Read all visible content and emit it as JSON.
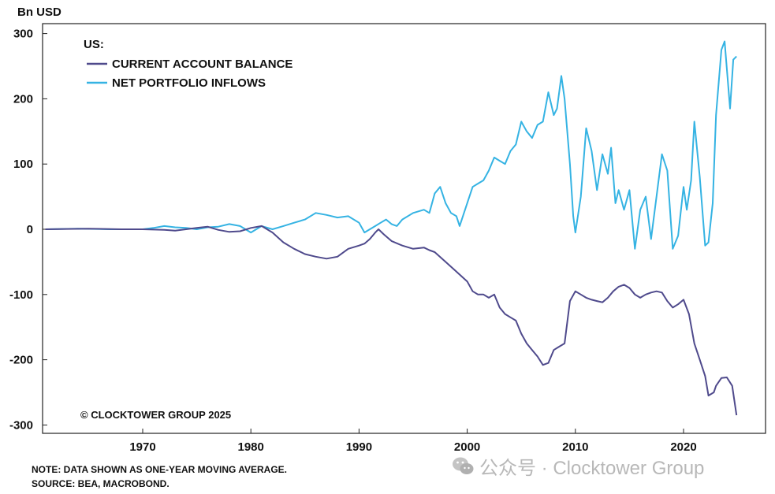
{
  "unit_label": "Bn USD",
  "chart_data": {
    "type": "line",
    "xlim": [
      1961,
      1962,
      2026
    ],
    "ylim": [
      -310,
      310
    ],
    "yticks": [
      300,
      200,
      100,
      0,
      -100,
      -200,
      -300
    ],
    "ytick_labels": [
      "300",
      "200",
      "100",
      "0",
      "-100",
      "-200",
      "-300"
    ],
    "xticks": [
      1970,
      1980,
      1990,
      2000,
      2010,
      2020
    ],
    "xtick_labels": [
      "1970",
      "1980",
      "1990",
      "2000",
      "2010",
      "2020"
    ],
    "grid": false,
    "legend": {
      "title": "US:",
      "placement": "top-left"
    },
    "series": [
      {
        "name": "CURRENT ACCOUNT BALANCE",
        "color": "#4f4a8c",
        "points": [
          [
            1961,
            0
          ],
          [
            1965,
            1
          ],
          [
            1968,
            0
          ],
          [
            1970,
            0
          ],
          [
            1972,
            -1
          ],
          [
            1973,
            -2
          ],
          [
            1975,
            2
          ],
          [
            1976,
            4
          ],
          [
            1977,
            -1
          ],
          [
            1978,
            -4
          ],
          [
            1979,
            -3
          ],
          [
            1980,
            2
          ],
          [
            1981,
            5
          ],
          [
            1982,
            -5
          ],
          [
            1983,
            -20
          ],
          [
            1984,
            -30
          ],
          [
            1985,
            -38
          ],
          [
            1986,
            -42
          ],
          [
            1987,
            -45
          ],
          [
            1988,
            -42
          ],
          [
            1989,
            -30
          ],
          [
            1990,
            -25
          ],
          [
            1990.5,
            -22
          ],
          [
            1991,
            -15
          ],
          [
            1991.5,
            -5
          ],
          [
            1991.8,
            0
          ],
          [
            1992.3,
            -8
          ],
          [
            1993,
            -18
          ],
          [
            1994,
            -25
          ],
          [
            1995,
            -30
          ],
          [
            1996,
            -28
          ],
          [
            1996.5,
            -32
          ],
          [
            1997,
            -35
          ],
          [
            1998,
            -50
          ],
          [
            1999,
            -65
          ],
          [
            2000,
            -80
          ],
          [
            2000.5,
            -95
          ],
          [
            2001,
            -100
          ],
          [
            2001.5,
            -100
          ],
          [
            2002,
            -105
          ],
          [
            2002.5,
            -100
          ],
          [
            2003,
            -120
          ],
          [
            2003.5,
            -130
          ],
          [
            2004,
            -135
          ],
          [
            2004.5,
            -140
          ],
          [
            2005,
            -160
          ],
          [
            2005.5,
            -175
          ],
          [
            2006,
            -185
          ],
          [
            2006.5,
            -195
          ],
          [
            2007,
            -208
          ],
          [
            2007.5,
            -205
          ],
          [
            2008,
            -185
          ],
          [
            2008.5,
            -180
          ],
          [
            2009,
            -175
          ],
          [
            2009.5,
            -110
          ],
          [
            2010,
            -95
          ],
          [
            2010.5,
            -100
          ],
          [
            2011,
            -105
          ],
          [
            2011.5,
            -108
          ],
          [
            2012,
            -110
          ],
          [
            2012.5,
            -112
          ],
          [
            2013,
            -105
          ],
          [
            2013.5,
            -95
          ],
          [
            2014,
            -88
          ],
          [
            2014.5,
            -85
          ],
          [
            2015,
            -90
          ],
          [
            2015.5,
            -100
          ],
          [
            2016,
            -105
          ],
          [
            2016.5,
            -100
          ],
          [
            2017,
            -97
          ],
          [
            2017.5,
            -95
          ],
          [
            2018,
            -97
          ],
          [
            2018.5,
            -110
          ],
          [
            2019,
            -120
          ],
          [
            2019.5,
            -115
          ],
          [
            2020,
            -108
          ],
          [
            2020.5,
            -130
          ],
          [
            2021,
            -175
          ],
          [
            2021.5,
            -200
          ],
          [
            2022,
            -225
          ],
          [
            2022.3,
            -255
          ],
          [
            2022.8,
            -250
          ],
          [
            2023,
            -240
          ],
          [
            2023.5,
            -228
          ],
          [
            2024,
            -227
          ],
          [
            2024.5,
            -240
          ],
          [
            2024.9,
            -285
          ]
        ]
      },
      {
        "name": "NET PORTFOLIO INFLOWS",
        "color": "#35b3e3",
        "points": [
          [
            1961,
            0
          ],
          [
            1964,
            1
          ],
          [
            1967,
            0
          ],
          [
            1970,
            0
          ],
          [
            1971,
            2
          ],
          [
            1972,
            5
          ],
          [
            1973,
            3
          ],
          [
            1974,
            2
          ],
          [
            1975,
            0
          ],
          [
            1976,
            3
          ],
          [
            1977,
            4
          ],
          [
            1978,
            8
          ],
          [
            1979,
            5
          ],
          [
            1980,
            -5
          ],
          [
            1981,
            5
          ],
          [
            1982,
            0
          ],
          [
            1983,
            5
          ],
          [
            1984,
            10
          ],
          [
            1985,
            15
          ],
          [
            1986,
            25
          ],
          [
            1987,
            22
          ],
          [
            1988,
            18
          ],
          [
            1989,
            20
          ],
          [
            1990,
            10
          ],
          [
            1990.5,
            -5
          ],
          [
            1991,
            0
          ],
          [
            1991.5,
            5
          ],
          [
            1992,
            10
          ],
          [
            1992.5,
            15
          ],
          [
            1993,
            8
          ],
          [
            1993.5,
            5
          ],
          [
            1994,
            15
          ],
          [
            1995,
            25
          ],
          [
            1996,
            30
          ],
          [
            1996.5,
            25
          ],
          [
            1997,
            55
          ],
          [
            1997.5,
            65
          ],
          [
            1998,
            40
          ],
          [
            1998.5,
            25
          ],
          [
            1999,
            20
          ],
          [
            1999.3,
            5
          ],
          [
            2000,
            40
          ],
          [
            2000.5,
            65
          ],
          [
            2001,
            70
          ],
          [
            2001.5,
            75
          ],
          [
            2002,
            90
          ],
          [
            2002.5,
            110
          ],
          [
            2003,
            105
          ],
          [
            2003.5,
            100
          ],
          [
            2004,
            120
          ],
          [
            2004.5,
            130
          ],
          [
            2005,
            165
          ],
          [
            2005.5,
            150
          ],
          [
            2006,
            140
          ],
          [
            2006.5,
            160
          ],
          [
            2007,
            165
          ],
          [
            2007.5,
            210
          ],
          [
            2008,
            175
          ],
          [
            2008.3,
            185
          ],
          [
            2008.7,
            235
          ],
          [
            2009,
            200
          ],
          [
            2009.5,
            100
          ],
          [
            2009.8,
            20
          ],
          [
            2010,
            -5
          ],
          [
            2010.5,
            50
          ],
          [
            2011,
            155
          ],
          [
            2011.5,
            120
          ],
          [
            2012,
            60
          ],
          [
            2012.5,
            115
          ],
          [
            2013,
            85
          ],
          [
            2013.3,
            125
          ],
          [
            2013.7,
            40
          ],
          [
            2014,
            60
          ],
          [
            2014.5,
            30
          ],
          [
            2015,
            60
          ],
          [
            2015.5,
            -30
          ],
          [
            2016,
            30
          ],
          [
            2016.5,
            50
          ],
          [
            2017,
            -15
          ],
          [
            2017.5,
            50
          ],
          [
            2018,
            115
          ],
          [
            2018.5,
            90
          ],
          [
            2019,
            -30
          ],
          [
            2019.5,
            -10
          ],
          [
            2020,
            65
          ],
          [
            2020.3,
            30
          ],
          [
            2020.7,
            75
          ],
          [
            2021,
            165
          ],
          [
            2021.5,
            80
          ],
          [
            2022,
            -25
          ],
          [
            2022.3,
            -20
          ],
          [
            2022.7,
            40
          ],
          [
            2023,
            175
          ],
          [
            2023.5,
            275
          ],
          [
            2023.8,
            288
          ],
          [
            2024.3,
            185
          ],
          [
            2024.6,
            260
          ],
          [
            2024.9,
            265
          ]
        ]
      }
    ],
    "annotations": [
      "© CLOCKTOWER GROUP 2025"
    ]
  },
  "notes": [
    "NOTE: DATA SHOWN AS ONE-YEAR MOVING AVERAGE.",
    "SOURCE: BEA, MACROBOND."
  ],
  "watermark": "公众号 · Clocktower Group",
  "watermark_icon": "wechat-icon"
}
